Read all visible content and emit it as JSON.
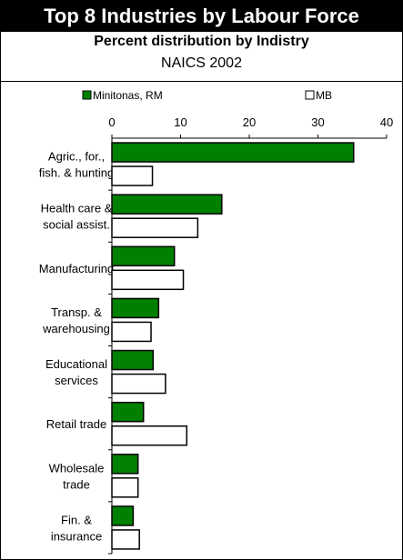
{
  "header": {
    "title": "Top 8 Industries by Labour Force",
    "subtitle": "Percent distribution by Indistry",
    "subtitle2": "NAICS 2002"
  },
  "colors": {
    "rm": "#008000",
    "mb": "#ffffff",
    "stroke": "#000000"
  },
  "chart_data": {
    "type": "bar",
    "orientation": "horizontal",
    "title": "Top 8 Industries by Labour Force",
    "subtitle": "Percent distribution by Indistry",
    "xlim": [
      0,
      40
    ],
    "xticks": [
      0,
      10,
      20,
      30,
      40
    ],
    "legend_position": "top",
    "categories": [
      [
        "Agric., for.,",
        "fish. & hunting"
      ],
      [
        "Health care &",
        "social assist."
      ],
      [
        "Manufacturing"
      ],
      [
        "Transp. &",
        "warehousing"
      ],
      [
        "Educational",
        "services"
      ],
      [
        "Retail trade"
      ],
      [
        "Wholesale",
        "trade"
      ],
      [
        "Fin. &",
        "insurance"
      ]
    ],
    "series": [
      {
        "name": "Minitonas, RM",
        "values": [
          35.2,
          16.0,
          9.1,
          6.8,
          6.0,
          4.6,
          3.8,
          3.1
        ]
      },
      {
        "name": "MB",
        "values": [
          5.9,
          12.5,
          10.4,
          5.7,
          7.8,
          10.9,
          3.8,
          4.0
        ]
      }
    ]
  }
}
